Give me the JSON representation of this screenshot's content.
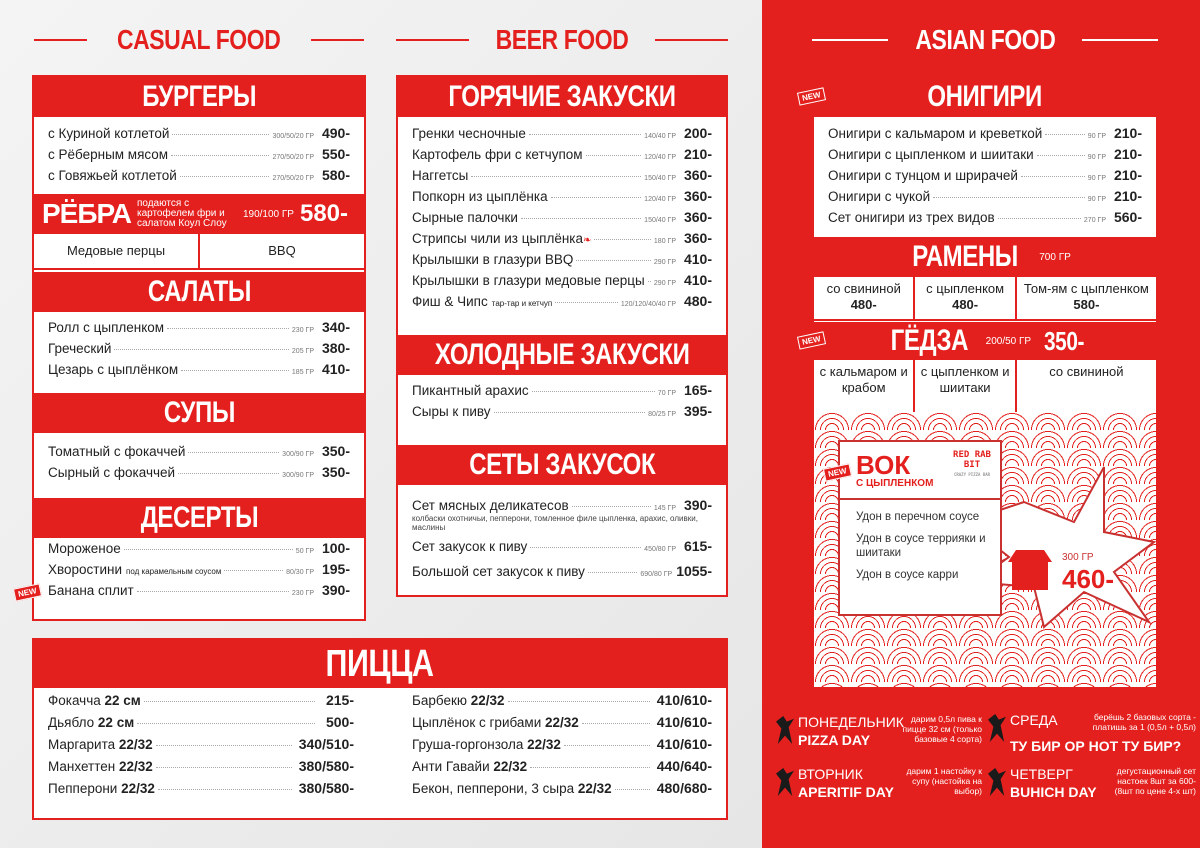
{
  "columns": {
    "casual": "CASUAL FOOD",
    "beer": "BEER FOOD",
    "asian": "ASIAN FOOD"
  },
  "colors": {
    "accent": "#e3201d"
  },
  "new_badge": "NEW",
  "burgers": {
    "title": "БУРГЕРЫ",
    "items": [
      {
        "name": "с Куриной котлетой",
        "weight": "300/50/20 ГР",
        "price": "490-"
      },
      {
        "name": "с Рёберным мясом",
        "weight": "270/50/20 ГР",
        "price": "550-"
      },
      {
        "name": "с Говяжьей котлетой",
        "weight": "270/50/20 ГР",
        "price": "580-"
      }
    ]
  },
  "ribs": {
    "title": "РЁБРА",
    "desc": "подаются с картофелем фри и салатом Коул Слоу",
    "weight": "190/100 ГР",
    "price": "580-",
    "sauces": [
      "Медовые перцы",
      "BBQ"
    ]
  },
  "salads": {
    "title": "САЛАТЫ",
    "items": [
      {
        "name": "Ролл с цыпленком",
        "weight": "230 ГР",
        "price": "340-"
      },
      {
        "name": "Греческий",
        "weight": "205 ГР",
        "price": "380-"
      },
      {
        "name": "Цезарь с цыплёнком",
        "weight": "185 ГР",
        "price": "410-"
      }
    ]
  },
  "soups": {
    "title": "СУПЫ",
    "items": [
      {
        "name": "Томатный с фокаччей",
        "weight": "300/90 ГР",
        "price": "350-"
      },
      {
        "name": "Сырный с фокаччей",
        "weight": "300/90 ГР",
        "price": "350-"
      }
    ]
  },
  "desserts": {
    "title": "ДЕСЕРТЫ",
    "items": [
      {
        "name": "Мороженое",
        "weight": "50 ГР",
        "price": "100-"
      },
      {
        "name": "Хворостини",
        "sub": "под карамельным соусом",
        "weight": "80/30 ГР",
        "price": "195-"
      },
      {
        "name": "Банана сплит",
        "weight": "230 ГР",
        "price": "390-",
        "new": true
      }
    ]
  },
  "hot": {
    "title": "ГОРЯЧИЕ ЗАКУСКИ",
    "items": [
      {
        "name": "Гренки чесночные",
        "weight": "140/40 ГР",
        "price": "200-"
      },
      {
        "name": "Картофель фри с кетчупом",
        "weight": "120/40 ГР",
        "price": "210-"
      },
      {
        "name": "Наггетсы",
        "weight": "150/40 ГР",
        "price": "360-"
      },
      {
        "name": "Попкорн из цыплёнка",
        "weight": "120/40 ГР",
        "price": "360-"
      },
      {
        "name": "Сырные палочки",
        "weight": "150/40 ГР",
        "price": "360-"
      },
      {
        "name": "Стрипсы чили из цыплёнка",
        "weight": "180 ГР",
        "price": "360-",
        "spicy": true
      },
      {
        "name": "Крылышки в глазури BBQ",
        "weight": "290 ГР",
        "price": "410-"
      },
      {
        "name": "Крылышки в глазури медовые перцы",
        "weight": "290 ГР",
        "price": "410-"
      },
      {
        "name": "Фиш & Чипс",
        "sub": "тар-тар и кетчуп",
        "weight": "120/120/40/40 ГР",
        "price": "480-"
      }
    ]
  },
  "cold": {
    "title": "ХОЛОДНЫЕ ЗАКУСКИ",
    "items": [
      {
        "name": "Пикантный арахис",
        "weight": "70 ГР",
        "price": "165-"
      },
      {
        "name": "Сыры к пиву",
        "weight": "80/25 ГР",
        "price": "395-"
      }
    ]
  },
  "sets": {
    "title": "СЕТЫ ЗАКУСОК",
    "items": [
      {
        "name": "Сет мясных деликатесов",
        "weight": "145 ГР",
        "price": "390-",
        "note": "колбаски охотничьи, пепперони, томленное филе цыпленка, арахис, оливки, маслины"
      },
      {
        "name": "Сет закусок к пиву",
        "weight": "450/80 ГР",
        "price": "615-"
      },
      {
        "name": "Большой сет закусок к пиву",
        "weight": "690/80 ГР",
        "price": "1055-"
      }
    ]
  },
  "pizza": {
    "title": "ПИЦЦА",
    "left": [
      {
        "name": "Фокачча",
        "size": "22 см",
        "price": "215-"
      },
      {
        "name": "Дьябло",
        "size": "22 см",
        "price": "500-"
      },
      {
        "name": "Маргарита",
        "size": "22/32",
        "price": "340/510-"
      },
      {
        "name": "Манхеттен",
        "size": "22/32",
        "price": "380/580-"
      },
      {
        "name": "Пепперони",
        "size": "22/32",
        "price": "380/580-"
      }
    ],
    "right": [
      {
        "name": "Барбекю",
        "size": "22/32",
        "price": "410/610-"
      },
      {
        "name": "Цыплёнок с грибами",
        "size": "22/32",
        "price": "410/610-"
      },
      {
        "name": "Груша-горгонзола",
        "size": "22/32",
        "price": "410/610-"
      },
      {
        "name": "Анти Гавайи",
        "size": "22/32",
        "price": "440/640-"
      },
      {
        "name": "Бекон, пепперони, 3 сыра",
        "size": "22/32",
        "price": "480/680-"
      }
    ]
  },
  "onigiri": {
    "title": "ОНИГИРИ",
    "items": [
      {
        "name": "Онигири с кальмаром и креветкой",
        "weight": "90 ГР",
        "price": "210-"
      },
      {
        "name": "Онигири с цыпленком и шиитаки",
        "weight": "90 ГР",
        "price": "210-"
      },
      {
        "name": "Онигири с тунцом и шрирачей",
        "weight": "90 ГР",
        "price": "210-"
      },
      {
        "name": "Онигири с чукой",
        "weight": "90 ГР",
        "price": "210-"
      },
      {
        "name": "Сет онигири из трех видов",
        "weight": "270 ГР",
        "price": "560-"
      }
    ]
  },
  "ramen": {
    "title": "РАМЕНЫ",
    "weight": "700 ГР",
    "options": [
      {
        "name": "со свининой",
        "price": "480-"
      },
      {
        "name": "с цыпленком",
        "price": "480-"
      },
      {
        "name": "Том-ям с цыпленком",
        "price": "580-"
      }
    ]
  },
  "gyoza": {
    "title": "ГЁДЗА",
    "weight": "200/50 ГР",
    "price": "350-",
    "options": [
      "с кальмаром и крабом",
      "с цыпленком и шиитаки",
      "со свининой"
    ]
  },
  "wok": {
    "title": "ВОК",
    "subtitle": "С ЦЫПЛЕНКОМ",
    "logo": "RED RAB BIT",
    "logo_sub": "CRAZY PIZZA BAR",
    "options": [
      "Удон в перечном соусе",
      "Удон в соусе террияки и шиитаки",
      "Удон в соусе карри"
    ],
    "weight": "300 ГР",
    "price": "460-"
  },
  "promos": [
    {
      "day": "ПОНЕДЕЛЬНИК",
      "name": "PIZZA DAY",
      "desc": "дарим 0,5л пива к пицце 32 см (только базовые 4 сорта)"
    },
    {
      "day": "СРЕДА",
      "name": "ТУ БИР ОР НОТ ТУ БИР?",
      "desc": "берёшь 2 базовых сорта - платишь за 1 (0,5л + 0,5л)"
    },
    {
      "day": "ВТОРНИК",
      "name": "APERITIF DAY",
      "desc": "дарим 1 настойку к супу (настойка на выбор)"
    },
    {
      "day": "ЧЕТВЕРГ",
      "name": "BUHICH DAY",
      "desc": "дегустационный сет настоек 8шт за 600- (8шт по цене 4-х шт)"
    }
  ]
}
